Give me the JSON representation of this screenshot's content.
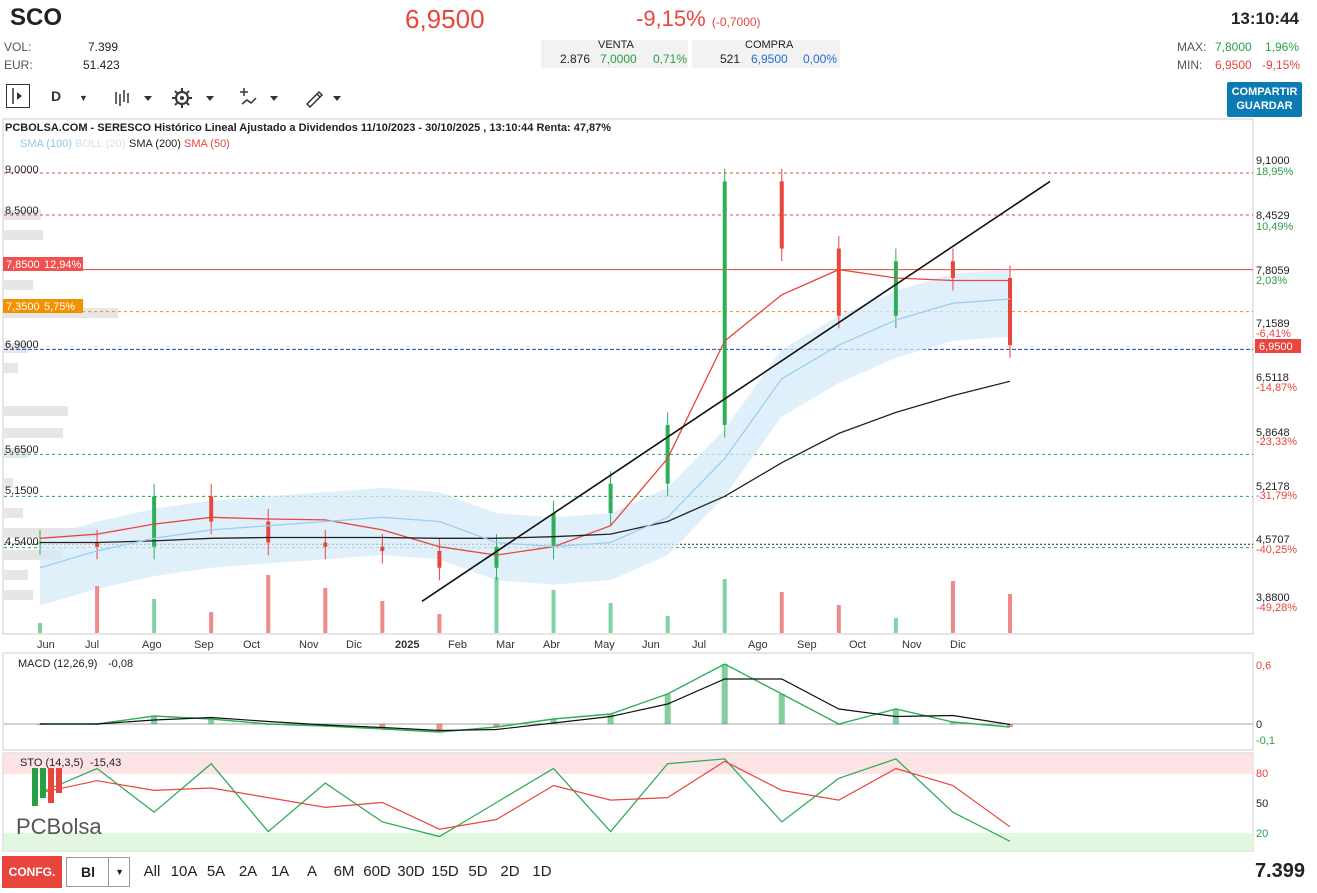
{
  "header": {
    "ticker": "SCO",
    "price": "6,9500",
    "change": "-9,15%",
    "change_abs": "(-0,7000)",
    "time": "13:10:44"
  },
  "stats": {
    "vol_label": "VOL:",
    "vol_value": "7.399",
    "eur_label": "EUR:",
    "eur_value": "51.423"
  },
  "orderbook": {
    "venta_label": "VENTA",
    "venta_qty": "2.876",
    "venta_price": "7,0000",
    "venta_pct": "0,71%",
    "compra_label": "COMPRA",
    "compra_qty": "521",
    "compra_price": "6,9500",
    "compra_pct": "0,00%"
  },
  "range": {
    "max_label": "MAX:",
    "max_value": "7,8000",
    "max_pct": "1,96%",
    "min_label": "MIN:",
    "min_value": "6,9500",
    "min_pct": "-9,15%"
  },
  "toolbar": {
    "period": "D",
    "share_line1": "COMPARTIR",
    "share_line2": "GUARDAR"
  },
  "chart_title": "PCBOLSA.COM - SERESCO Histórico Lineal Ajustado a Dividendos 11/10/2023 - 30/10/2025 , 13:10:44 Renta: 47,87%",
  "legend": {
    "sma100": "SMA (100)",
    "boll": "BOLL (20)",
    "sma200": "SMA (200)",
    "sma50": "SMA (50)"
  },
  "left_labels": [
    "9,0000",
    "8,5000",
    "6,9000",
    "5,6500",
    "5,1500",
    "4,5400"
  ],
  "tag_7850": {
    "price": "7,8500",
    "pct": "12,94%"
  },
  "tag_7350": {
    "price": "7,3500",
    "pct": "5,75%"
  },
  "right_axis": [
    {
      "p": "9,1000",
      "pct": "18,95%"
    },
    {
      "p": "8,4529",
      "pct": "10,49%"
    },
    {
      "p": "7,8059",
      "pct": "2,03%"
    },
    {
      "p": "7,1589",
      "pct": "-6,41%"
    },
    {
      "p": "6,5118",
      "pct": "-14,87%"
    },
    {
      "p": "5,8648",
      "pct": "-23,33%"
    },
    {
      "p": "5,2178",
      "pct": "-31,79%"
    },
    {
      "p": "4,5707",
      "pct": "-40,25%"
    },
    {
      "p": "3,8800",
      "pct": "-49,28%"
    }
  ],
  "current_tag": "6,9500",
  "months": [
    "Jun",
    "Jul",
    "Ago",
    "Sep",
    "Oct",
    "Nov",
    "Dic",
    "2025",
    "Feb",
    "Mar",
    "Abr",
    "May",
    "Jun",
    "Jul",
    "Ago",
    "Sep",
    "Oct",
    "Nov",
    "Dic"
  ],
  "macd": {
    "label": "MACD (12,26,9)",
    "value": "-0,08",
    "ticks": [
      "0,6",
      "0",
      "-0,1"
    ]
  },
  "sto": {
    "label": "STO (14,3,5)",
    "value": "-15,43",
    "ticks": [
      "80",
      "50",
      "20"
    ]
  },
  "logo": "PCBolsa",
  "bottom": {
    "confg": "CONFG.",
    "bl": "Bl",
    "periods": [
      "All",
      "10A",
      "5A",
      "2A",
      "1A",
      "A",
      "6M",
      "60D",
      "30D",
      "15D",
      "5D",
      "2D",
      "1D"
    ],
    "volume": "7.399"
  },
  "chart_data": {
    "type": "line",
    "title": "PCBOLSA.COM - SERESCO Histórico Lineal Ajustado a Dividendos 11/10/2023 - 30/10/2025 , 13:10:44 Renta: 47,87%",
    "x": [
      "2024-06",
      "2024-07",
      "2024-08",
      "2024-09",
      "2024-10",
      "2024-11",
      "2024-12",
      "2025-01",
      "2025-02",
      "2025-03",
      "2025-04",
      "2025-05",
      "2025-06",
      "2025-07",
      "2025-08",
      "2025-09",
      "2025-10",
      "2025-10-30"
    ],
    "series": [
      {
        "name": "SMA (50)",
        "values": [
          4.65,
          4.7,
          4.82,
          4.9,
          4.88,
          4.87,
          4.75,
          4.55,
          4.45,
          4.55,
          4.8,
          5.6,
          7.0,
          7.55,
          7.85,
          7.75,
          7.72,
          7.72
        ]
      },
      {
        "name": "SMA (200)",
        "values": [
          4.6,
          4.6,
          4.62,
          4.65,
          4.66,
          4.66,
          4.66,
          4.65,
          4.65,
          4.67,
          4.7,
          4.85,
          5.15,
          5.55,
          5.9,
          6.15,
          6.35,
          6.52
        ]
      },
      {
        "name": "SMA (100)",
        "values": [
          4.3,
          4.5,
          4.65,
          4.75,
          4.8,
          4.85,
          4.9,
          4.85,
          4.6,
          4.55,
          4.6,
          4.9,
          5.6,
          6.55,
          6.95,
          7.25,
          7.45,
          7.5
        ]
      }
    ],
    "close": [
      4.6,
      4.55,
      5.15,
      4.85,
      4.6,
      4.55,
      4.5,
      4.3,
      4.55,
      4.95,
      5.3,
      6.0,
      8.9,
      8.1,
      7.3,
      7.95,
      7.75,
      6.95
    ],
    "horizontal_levels": [
      9.0,
      8.5,
      7.85,
      7.35,
      6.9,
      5.65,
      5.15,
      4.58,
      4.54
    ],
    "trendline": {
      "from": [
        "2025-01",
        3.9
      ],
      "to": [
        "2025-11",
        8.9
      ]
    },
    "ylim": [
      3.8,
      9.3
    ],
    "macd": {
      "ylim": [
        -0.1,
        0.6
      ]
    },
    "stochastic": {
      "ylim": [
        0,
        100
      ],
      "bands": [
        20,
        80
      ]
    }
  }
}
